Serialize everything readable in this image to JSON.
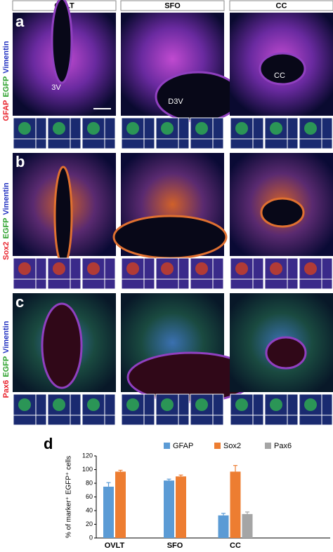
{
  "figure": {
    "columns": [
      "OVLT",
      "SFO",
      "CC"
    ],
    "panels": [
      {
        "label": "a",
        "markers": [
          "GFAP",
          "EGFP",
          "Vimentin"
        ],
        "annotations": [
          "3V",
          "D3V",
          "CC"
        ]
      },
      {
        "label": "b",
        "markers": [
          "Sox2",
          "EGFP",
          "Vimentin"
        ]
      },
      {
        "label": "c",
        "markers": [
          "Pax6",
          "EGFP",
          "Vimentin"
        ]
      }
    ]
  },
  "chart_data": {
    "type": "bar",
    "label": "d",
    "y_label": "% of marker⁺ EGFP⁺ cells",
    "categories": [
      "OVLT",
      "SFO",
      "CC"
    ],
    "series": [
      {
        "name": "GFAP",
        "color": "#5b9bd5",
        "values": [
          75,
          84,
          33
        ],
        "errors": [
          6,
          2,
          3
        ]
      },
      {
        "name": "Sox2",
        "color": "#ed7d31",
        "values": [
          97,
          90,
          97
        ],
        "errors": [
          2,
          2,
          9
        ]
      },
      {
        "name": "Pax6",
        "color": "#a5a5a5",
        "values": [
          null,
          null,
          35
        ],
        "errors": [
          null,
          null,
          3
        ]
      }
    ],
    "ylim": [
      0,
      120
    ],
    "yticks": [
      0,
      20,
      40,
      60,
      80,
      100,
      120
    ]
  }
}
